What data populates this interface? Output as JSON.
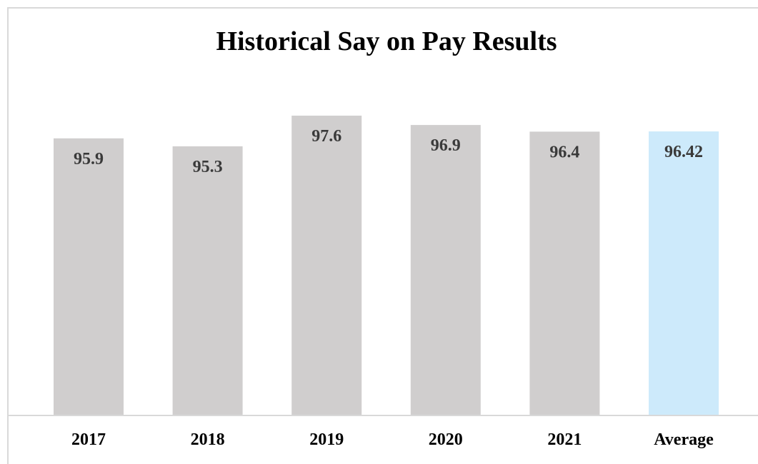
{
  "chart_data": {
    "type": "bar",
    "title": "Historical Say on Pay Results",
    "categories": [
      "2017",
      "2018",
      "2019",
      "2020",
      "2021",
      "Average"
    ],
    "values": [
      95.9,
      95.3,
      97.6,
      96.9,
      96.4,
      96.42
    ],
    "value_labels": [
      "95.9",
      "95.3",
      "97.6",
      "96.9",
      "96.4",
      "96.42"
    ],
    "xlabel": "",
    "ylabel": "",
    "grid": false,
    "legend": "none",
    "colors": {
      "bar": "#d0cece",
      "highlight": "#cdeafb",
      "axis": "#d9d9d9",
      "label": "#3a3a3a"
    },
    "highlight_category": "Average"
  }
}
